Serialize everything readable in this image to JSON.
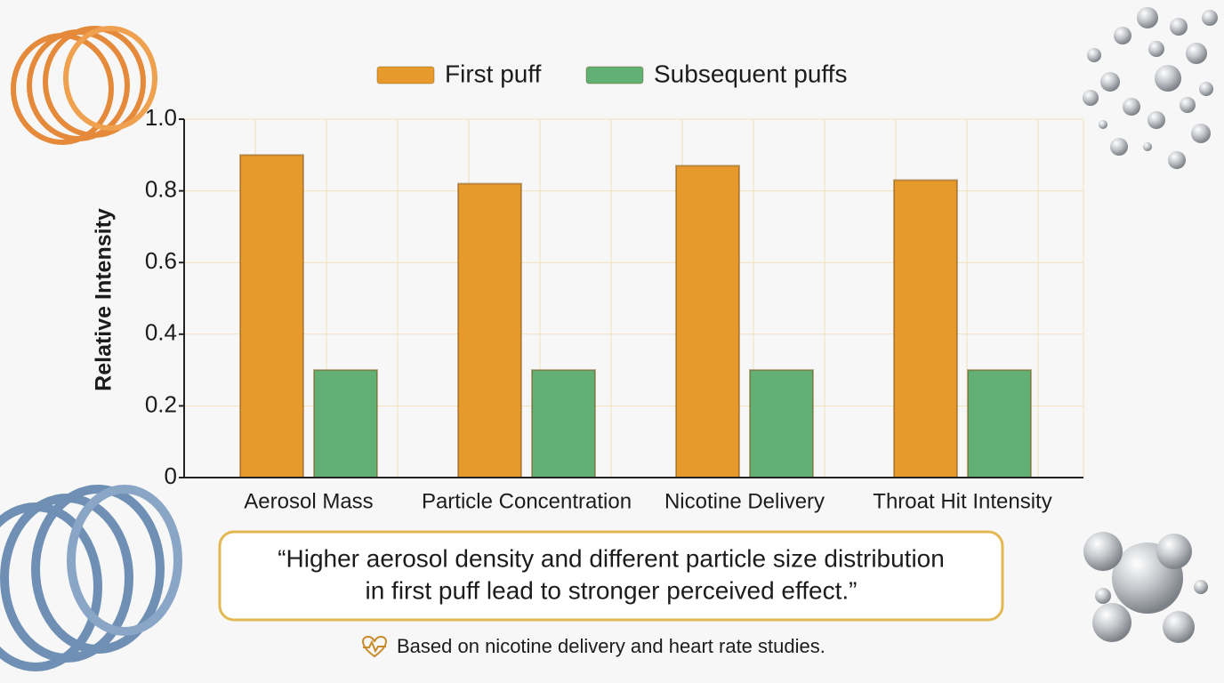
{
  "chart_data": {
    "type": "bar",
    "y_label": "Relative Intensity",
    "categories": [
      "Aerosol Mass",
      "Particle Concentration",
      "Nicotine Delivery",
      "Throat Hit Intensity"
    ],
    "series": [
      {
        "name": "First puff",
        "color": "#e69a2c",
        "values": [
          0.9,
          0.82,
          0.87,
          0.83
        ]
      },
      {
        "name": "Subsequent puffs",
        "color": "#62b074",
        "values": [
          0.3,
          0.3,
          0.3,
          0.3
        ]
      }
    ],
    "ylim": [
      0,
      1
    ],
    "yticks": [
      0,
      0.2,
      0.4,
      0.6,
      0.8,
      {
        "value": 1,
        "label": "1.0"
      }
    ],
    "grid": true,
    "legend": "top",
    "annotation": [
      "“Higher aerosol density and different particle size distribution",
      "in first puff lead to stronger perceived effect.”"
    ],
    "footnote": "Based on nicotine delivery and heart rate studies."
  }
}
